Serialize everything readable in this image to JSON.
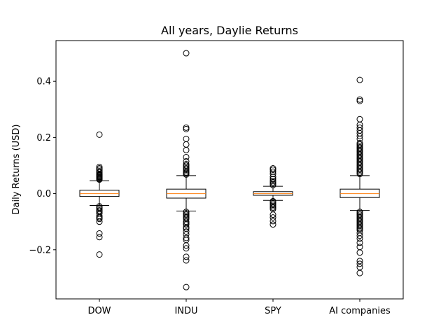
{
  "chart_data": {
    "type": "box",
    "title": "All years, Daylie Returns",
    "xlabel": "",
    "ylabel": "Daily Returns (USD)",
    "ylim": [
      -0.375,
      0.545
    ],
    "yticks": [
      -0.2,
      0.0,
      0.2,
      0.4
    ],
    "ytick_labels": [
      "−0.2",
      "0.0",
      "0.2",
      "0.4"
    ],
    "grid": false,
    "categories": [
      "DOW",
      "INDU",
      "SPY",
      "AI companies"
    ],
    "series": [
      {
        "category": "DOW",
        "median": 0.0,
        "q1": -0.01,
        "q3": 0.012,
        "whisker_low": -0.042,
        "whisker_high": 0.046,
        "outliers": [
          0.21,
          0.095,
          0.09,
          0.085,
          0.08,
          0.075,
          0.07,
          0.068,
          0.065,
          0.062,
          0.06,
          0.058,
          0.055,
          0.052,
          0.05,
          -0.045,
          -0.05,
          -0.055,
          -0.06,
          -0.065,
          -0.07,
          -0.08,
          -0.085,
          -0.09,
          -0.1,
          -0.142,
          -0.155,
          -0.217
        ]
      },
      {
        "category": "INDU",
        "median": 0.0,
        "q1": -0.016,
        "q3": 0.016,
        "whisker_low": -0.062,
        "whisker_high": 0.064,
        "outliers": [
          0.5,
          0.235,
          0.23,
          0.195,
          0.175,
          0.155,
          0.13,
          0.115,
          0.105,
          0.1,
          0.095,
          0.09,
          0.085,
          0.08,
          0.075,
          0.072,
          0.068,
          -0.065,
          -0.07,
          -0.075,
          -0.08,
          -0.085,
          -0.09,
          -0.1,
          -0.105,
          -0.11,
          -0.12,
          -0.125,
          -0.135,
          -0.145,
          -0.158,
          -0.165,
          -0.185,
          -0.195,
          -0.225,
          -0.238,
          -0.333
        ]
      },
      {
        "category": "SPY",
        "median": 0.0,
        "q1": -0.006,
        "q3": 0.007,
        "whisker_low": -0.024,
        "whisker_high": 0.026,
        "outliers": [
          0.09,
          0.085,
          0.078,
          0.07,
          0.06,
          0.052,
          0.045,
          0.04,
          0.035,
          0.03,
          -0.027,
          -0.03,
          -0.035,
          -0.04,
          -0.045,
          -0.05,
          -0.055,
          -0.075,
          -0.085,
          -0.098,
          -0.11
        ]
      },
      {
        "category": "AI companies",
        "median": 0.0,
        "q1": -0.014,
        "q3": 0.016,
        "whisker_low": -0.06,
        "whisker_high": 0.064,
        "outliers": [
          0.405,
          0.335,
          0.33,
          0.265,
          0.245,
          0.235,
          0.225,
          0.215,
          0.205,
          0.195,
          0.18,
          0.175,
          0.17,
          0.165,
          0.16,
          0.155,
          0.15,
          0.145,
          0.14,
          0.135,
          0.13,
          0.125,
          0.12,
          0.115,
          0.11,
          0.105,
          0.1,
          0.095,
          0.09,
          0.085,
          0.08,
          0.075,
          0.07,
          -0.065,
          -0.07,
          -0.075,
          -0.08,
          -0.085,
          -0.09,
          -0.095,
          -0.1,
          -0.105,
          -0.11,
          -0.115,
          -0.12,
          -0.125,
          -0.13,
          -0.14,
          -0.15,
          -0.16,
          -0.175,
          -0.19,
          -0.21,
          -0.24,
          -0.25,
          -0.262,
          -0.283
        ]
      }
    ]
  }
}
